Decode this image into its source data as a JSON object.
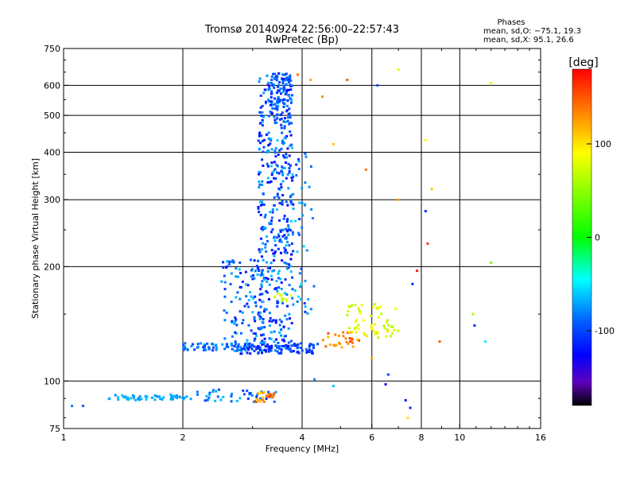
{
  "chart_data": {
    "type": "scatter",
    "title": "Tromsø 20140924 22:56:00–22:57:43",
    "subtitle": "RwPretec (Bp)",
    "xlabel": "Frequency [MHz]",
    "ylabel": "Stationary phase Virtual Height [km]",
    "x_scale": "log",
    "y_scale": "log",
    "xlim": [
      1,
      16
    ],
    "ylim": [
      75,
      750
    ],
    "x_ticks": [
      1,
      2,
      4,
      6,
      8,
      10,
      16
    ],
    "x_grid": [
      2,
      4,
      6,
      8,
      10
    ],
    "y_ticks": [
      75,
      100,
      200,
      300,
      400,
      500,
      600,
      750
    ],
    "grid": true,
    "stats": {
      "title": "Phases",
      "line1": "mean, sd,O: −75.1, 19.3",
      "line2": "mean, sd,X:  95.1, 26.6"
    },
    "colorbar": {
      "label": "[deg]",
      "range": [
        -180,
        180
      ],
      "ticks": [
        100,
        0,
        -100
      ],
      "colors": [
        "#ff0000",
        "#ff8000",
        "#ffff00",
        "#00ff00",
        "#00ffff",
        "#0080ff",
        "#0000ff",
        "#6000c0",
        "#000000"
      ],
      "placement": "right"
    },
    "clusters": [
      {
        "freq": [
          1.3,
          2.05
        ],
        "height": [
          89,
          92
        ],
        "phase": [
          -80,
          -60
        ],
        "count": 55
      },
      {
        "freq": [
          2.05,
          3.45
        ],
        "height": [
          88,
          95
        ],
        "phase": [
          -110,
          -60
        ],
        "count": 45
      },
      {
        "freq": [
          3.05,
          3.4
        ],
        "height": [
          88,
          94
        ],
        "phase": [
          100,
          160
        ],
        "count": 25
      },
      {
        "freq": [
          2.0,
          3.0
        ],
        "height": [
          120,
          126
        ],
        "phase": [
          -110,
          -60
        ],
        "count": 70
      },
      {
        "freq": [
          2.8,
          4.4
        ],
        "height": [
          118,
          126
        ],
        "phase": [
          -120,
          -90
        ],
        "count": 90
      },
      {
        "freq": [
          3.1,
          3.8
        ],
        "height": [
          120,
          640
        ],
        "phase": [
          -130,
          -60
        ],
        "count": 450
      },
      {
        "freq": [
          2.5,
          3.2
        ],
        "height": [
          125,
          210
        ],
        "phase": [
          -120,
          -60
        ],
        "count": 110
      },
      {
        "freq": [
          3.3,
          3.75
        ],
        "height": [
          460,
          650
        ],
        "phase": [
          -110,
          -80
        ],
        "count": 80
      },
      {
        "freq": [
          3.7,
          4.3
        ],
        "height": [
          150,
          400
        ],
        "phase": [
          -110,
          -50
        ],
        "count": 50
      },
      {
        "freq": [
          4.5,
          5.6
        ],
        "height": [
          122,
          135
        ],
        "phase": [
          110,
          160
        ],
        "count": 30
      },
      {
        "freq": [
          5.2,
          7.0
        ],
        "height": [
          130,
          160
        ],
        "phase": [
          60,
          100
        ],
        "count": 60
      },
      {
        "freq": [
          3.4,
          3.8
        ],
        "height": [
          160,
          170
        ],
        "phase": [
          60,
          90
        ],
        "count": 12
      }
    ],
    "points": [
      {
        "x": 1.05,
        "y": 86,
        "phase": -80
      },
      {
        "x": 1.12,
        "y": 86,
        "phase": -90
      },
      {
        "x": 3.9,
        "y": 640,
        "phase": 140
      },
      {
        "x": 4.2,
        "y": 620,
        "phase": 120
      },
      {
        "x": 4.5,
        "y": 560,
        "phase": 130
      },
      {
        "x": 5.2,
        "y": 620,
        "phase": 150
      },
      {
        "x": 6.2,
        "y": 600,
        "phase": -100
      },
      {
        "x": 7.0,
        "y": 660,
        "phase": 80
      },
      {
        "x": 4.8,
        "y": 420,
        "phase": 110
      },
      {
        "x": 5.8,
        "y": 360,
        "phase": 140
      },
      {
        "x": 7.0,
        "y": 300,
        "phase": 120
      },
      {
        "x": 8.2,
        "y": 430,
        "phase": 90
      },
      {
        "x": 8.5,
        "y": 320,
        "phase": 110
      },
      {
        "x": 8.2,
        "y": 280,
        "phase": -110
      },
      {
        "x": 8.3,
        "y": 230,
        "phase": 160
      },
      {
        "x": 7.8,
        "y": 195,
        "phase": 170
      },
      {
        "x": 7.6,
        "y": 180,
        "phase": -110
      },
      {
        "x": 8.9,
        "y": 127,
        "phase": 150
      },
      {
        "x": 10.8,
        "y": 150,
        "phase": 60
      },
      {
        "x": 10.9,
        "y": 140,
        "phase": -110
      },
      {
        "x": 11.6,
        "y": 127,
        "phase": -50
      },
      {
        "x": 12.0,
        "y": 205,
        "phase": 40
      },
      {
        "x": 6.0,
        "y": 115,
        "phase": 120
      },
      {
        "x": 6.5,
        "y": 98,
        "phase": -130
      },
      {
        "x": 7.3,
        "y": 89,
        "phase": -120
      },
      {
        "x": 7.4,
        "y": 80,
        "phase": 100
      },
      {
        "x": 7.5,
        "y": 85,
        "phase": -110
      },
      {
        "x": 4.3,
        "y": 101,
        "phase": -80
      },
      {
        "x": 4.8,
        "y": 97,
        "phase": -60
      },
      {
        "x": 6.6,
        "y": 104,
        "phase": -100
      },
      {
        "x": 12.0,
        "y": 608,
        "phase": 80
      }
    ]
  }
}
